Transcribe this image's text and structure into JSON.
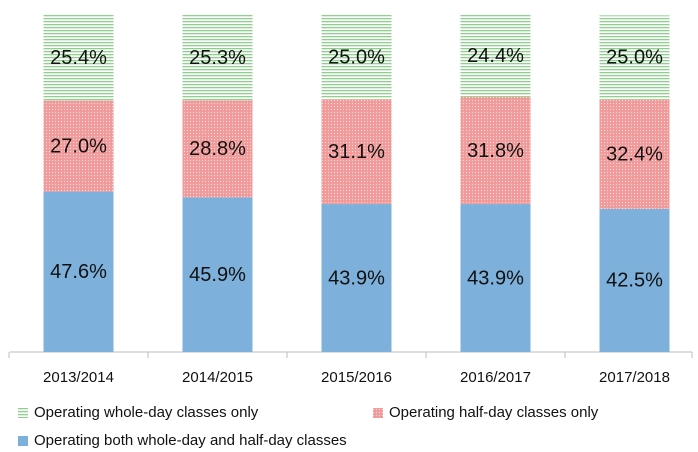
{
  "chart_data": {
    "type": "stacked_bar",
    "categories": [
      "2013/2014",
      "2014/2015",
      "2015/2016",
      "2016/2017",
      "2017/2018"
    ],
    "ylim": [
      0,
      100
    ],
    "series": [
      {
        "name": "Operating whole-day classes only",
        "color": "#8fd08f",
        "pattern": "hatch",
        "values": [
          25.4,
          25.3,
          25.0,
          24.4,
          25.0
        ],
        "value_labels": [
          "25.4%",
          "25.3%",
          "25.0%",
          "24.4%",
          "25.0%"
        ]
      },
      {
        "name": "Operating half-day classes only",
        "color": "#f29a9a",
        "pattern": "dots",
        "values": [
          27.0,
          28.8,
          31.1,
          31.8,
          32.4
        ],
        "value_labels": [
          "27.0%",
          "28.8%",
          "31.1%",
          "31.8%",
          "32.4%"
        ]
      },
      {
        "name": "Operating both whole-day and half-day classes",
        "color": "#7db0da",
        "pattern": "solid",
        "values": [
          47.6,
          45.9,
          43.9,
          43.9,
          42.5
        ],
        "value_labels": [
          "47.6%",
          "45.9%",
          "43.9%",
          "43.9%",
          "42.5%"
        ]
      }
    ],
    "legend": "bottom"
  }
}
